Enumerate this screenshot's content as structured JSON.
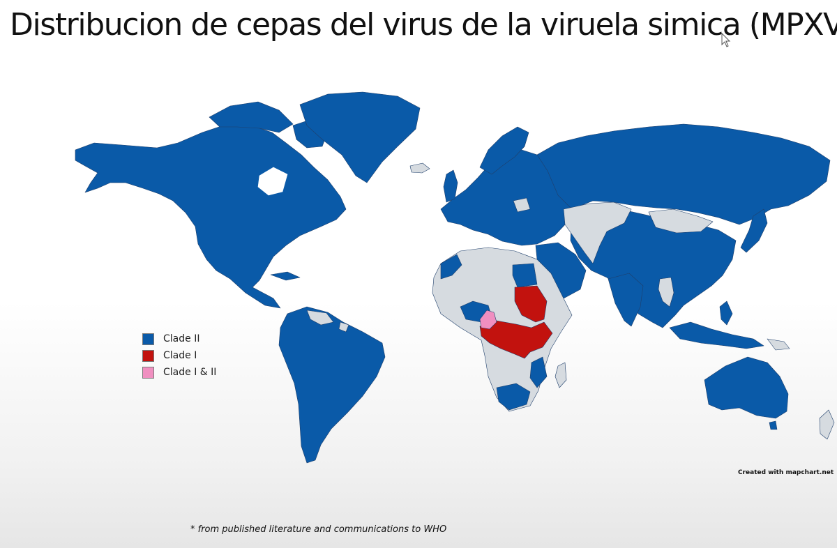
{
  "slide": {
    "title": "Distribucion de cepas del virus de la viruela simica (MPXV)"
  },
  "map": {
    "legend": [
      {
        "label": "Clade II",
        "color": "#0a5aa8"
      },
      {
        "label": "Clade I",
        "color": "#c2120e"
      },
      {
        "label": "Clade I & II",
        "color": "#f08fc0"
      }
    ],
    "no_data_color": "#d6dbe0",
    "credit": "Created with mapchart.net",
    "footnote": "* from published literature and communications to WHO"
  }
}
